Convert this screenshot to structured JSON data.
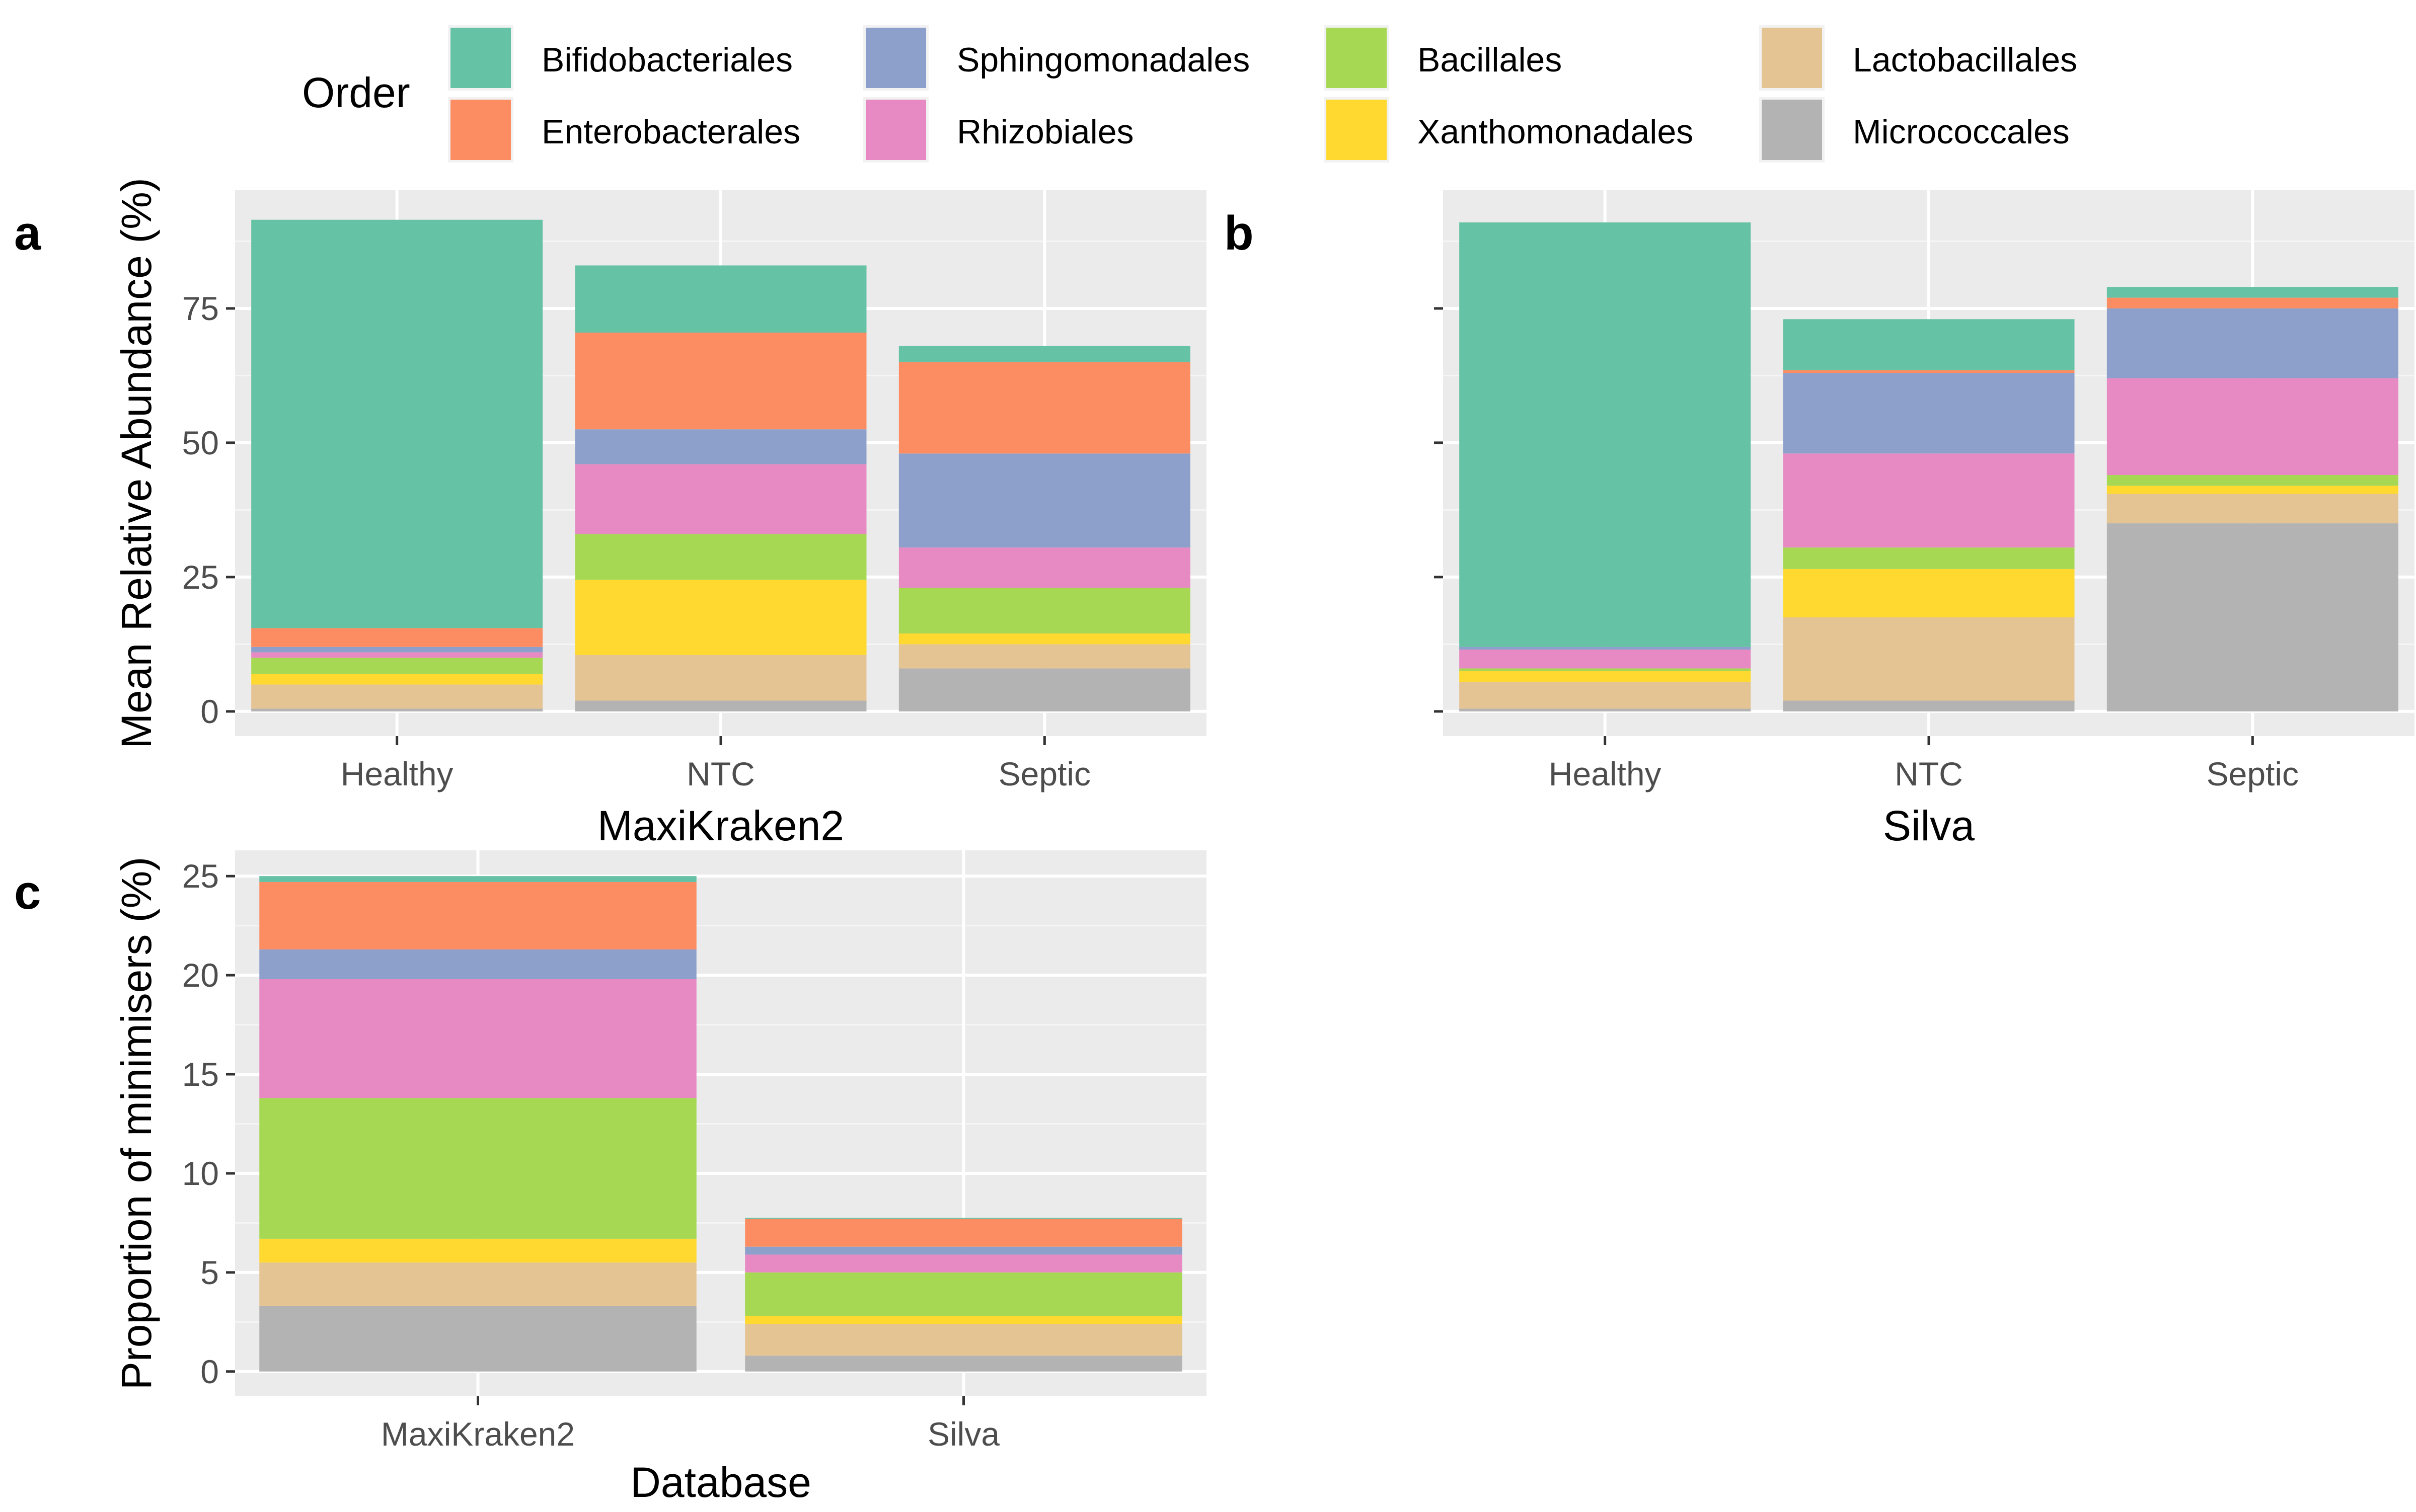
{
  "legend": {
    "title": "Order",
    "items": [
      {
        "name": "Bifidobacteriales",
        "color": "#66C2A5"
      },
      {
        "name": "Enterobacterales",
        "color": "#FC8D62"
      },
      {
        "name": "Sphingomonadales",
        "color": "#8DA0CB"
      },
      {
        "name": "Rhizobiales",
        "color": "#E78AC3"
      },
      {
        "name": "Bacillales",
        "color": "#A6D854"
      },
      {
        "name": "Xanthomonadales",
        "color": "#FFD92F"
      },
      {
        "name": "Lactobacillales",
        "color": "#E5C494"
      },
      {
        "name": "Micrococcales",
        "color": "#B3B3B3"
      }
    ]
  },
  "chart_data": [
    {
      "panel": "a",
      "type": "bar",
      "stacked": true,
      "xlabel": "MaxiKraken2",
      "ylabel": "Mean Relative Abundance (%)",
      "ylim": [
        -4.6,
        97
      ],
      "yticks": [
        0,
        25,
        50,
        75
      ],
      "categories": [
        "Healthy",
        "NTC",
        "Septic"
      ],
      "series": [
        {
          "name": "Micrococcales",
          "values": [
            0.5,
            2.0,
            8.0
          ]
        },
        {
          "name": "Lactobacillales",
          "values": [
            4.5,
            8.5,
            4.5
          ]
        },
        {
          "name": "Xanthomonadales",
          "values": [
            2.0,
            14.0,
            2.0
          ]
        },
        {
          "name": "Bacillales",
          "values": [
            3.0,
            8.5,
            8.5
          ]
        },
        {
          "name": "Rhizobiales",
          "values": [
            1.0,
            13.0,
            7.5
          ]
        },
        {
          "name": "Sphingomonadales",
          "values": [
            1.0,
            6.5,
            17.5
          ]
        },
        {
          "name": "Enterobacterales",
          "values": [
            3.5,
            18.0,
            17.0
          ]
        },
        {
          "name": "Bifidobacteriales",
          "values": [
            76.0,
            12.5,
            3.0
          ]
        }
      ]
    },
    {
      "panel": "b",
      "type": "bar",
      "stacked": true,
      "xlabel": "Silva",
      "ylabel": "",
      "ylim": [
        -4.6,
        97
      ],
      "yticks": [
        0,
        25,
        50,
        75
      ],
      "categories": [
        "Healthy",
        "NTC",
        "Septic"
      ],
      "series": [
        {
          "name": "Micrococcales",
          "values": [
            0.5,
            2.0,
            35.0
          ]
        },
        {
          "name": "Lactobacillales",
          "values": [
            5.0,
            15.5,
            5.5
          ]
        },
        {
          "name": "Xanthomonadales",
          "values": [
            2.0,
            9.0,
            1.5
          ]
        },
        {
          "name": "Bacillales",
          "values": [
            0.5,
            4.0,
            2.0
          ]
        },
        {
          "name": "Rhizobiales",
          "values": [
            3.5,
            17.5,
            18.0
          ]
        },
        {
          "name": "Sphingomonadales",
          "values": [
            0.5,
            15.0,
            13.0
          ]
        },
        {
          "name": "Enterobacterales",
          "values": [
            0.0,
            0.5,
            2.0
          ]
        },
        {
          "name": "Bifidobacteriales",
          "values": [
            79.0,
            9.5,
            2.0
          ]
        }
      ]
    },
    {
      "panel": "c",
      "type": "bar",
      "stacked": true,
      "xlabel": "Database",
      "ylabel": "Proportion of minimisers (%)",
      "ylim": [
        -1.25,
        26.3
      ],
      "yticks": [
        0,
        5,
        10,
        15,
        20,
        25
      ],
      "categories": [
        "MaxiKraken2",
        "Silva"
      ],
      "series": [
        {
          "name": "Micrococcales",
          "values": [
            3.3,
            0.8
          ]
        },
        {
          "name": "Lactobacillales",
          "values": [
            2.2,
            1.6
          ]
        },
        {
          "name": "Xanthomonadales",
          "values": [
            1.2,
            0.4
          ]
        },
        {
          "name": "Bacillales",
          "values": [
            7.1,
            2.2
          ]
        },
        {
          "name": "Rhizobiales",
          "values": [
            6.0,
            0.9
          ]
        },
        {
          "name": "Sphingomonadales",
          "values": [
            1.5,
            0.4
          ]
        },
        {
          "name": "Enterobacterales",
          "values": [
            3.4,
            1.4
          ]
        },
        {
          "name": "Bifidobacteriales",
          "values": [
            0.3,
            0.05
          ]
        }
      ]
    }
  ],
  "panels": {
    "a": {
      "tag": "a"
    },
    "b": {
      "tag": "b"
    },
    "c": {
      "tag": "c"
    }
  }
}
